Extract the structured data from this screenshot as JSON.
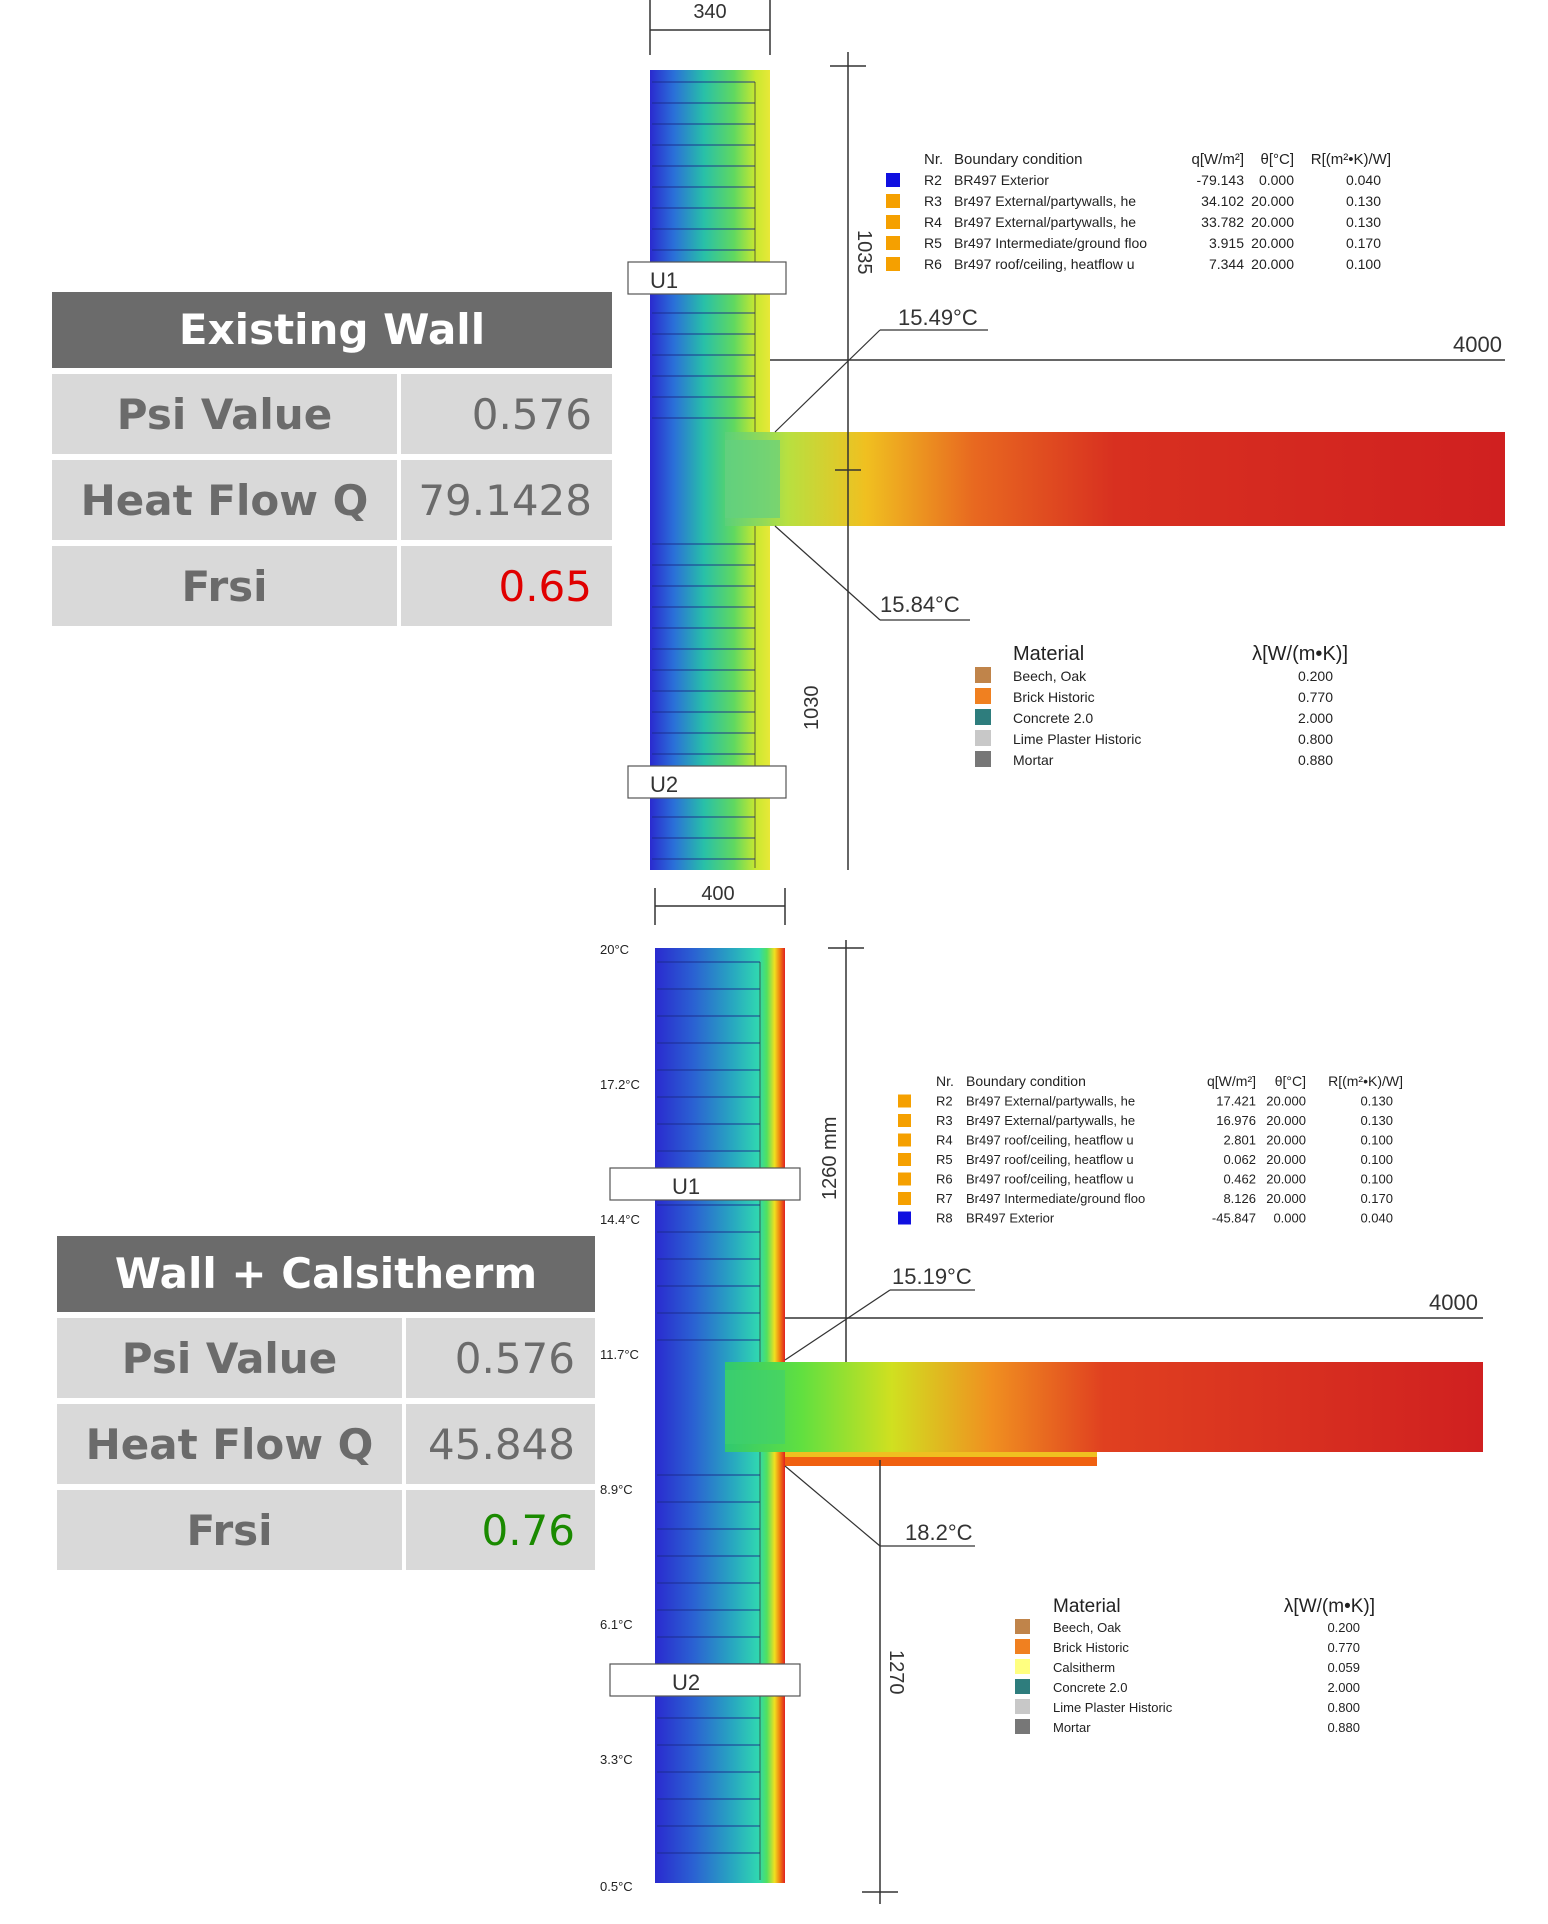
{
  "colors": {
    "card_header": "#6b6b6b",
    "card_cell": "#d9d9d9",
    "red": "#e00000",
    "green": "#1a8a00",
    "hot": "#d02020",
    "cold": "#2a2acf"
  },
  "card1": {
    "title": "Existing Wall",
    "rows": [
      {
        "label": "Psi Value",
        "value": "0.576",
        "color": "#6b6b6b"
      },
      {
        "label": "Heat Flow Q",
        "value": "79.1428",
        "color": "#6b6b6b"
      },
      {
        "label": "Frsi",
        "value": "0.65",
        "color": "#e00000"
      }
    ]
  },
  "card2": {
    "title": "Wall + Calsitherm",
    "rows": [
      {
        "label": "Psi Value",
        "value": "0.576",
        "color": "#6b6b6b"
      },
      {
        "label": "Heat Flow Q",
        "value": "45.848",
        "color": "#6b6b6b"
      },
      {
        "label": "Frsi",
        "value": "0.76",
        "color": "#1a8a00"
      }
    ]
  },
  "top": {
    "dim_width": "340",
    "dim_upper": "1035",
    "dim_lower": "1030",
    "dim_floor": "4000",
    "u1": "U1",
    "u2": "U2",
    "temp_upper": "15.49°C",
    "temp_lower": "15.84°C",
    "bc_headers": [
      "Nr.",
      "Boundary condition",
      "q[W/m²]",
      "θ[°C]",
      "R[(m²•K)/W]"
    ],
    "bc_rows": [
      {
        "nr": "R2",
        "name": "BR497 Exterior",
        "q": "-79.143",
        "t": "0.000",
        "r": "0.040",
        "color": "#1010e0"
      },
      {
        "nr": "R3",
        "name": "Br497 External/partywalls, he",
        "q": "34.102",
        "t": "20.000",
        "r": "0.130",
        "color": "#f5a000"
      },
      {
        "nr": "R4",
        "name": "Br497 External/partywalls, he",
        "q": "33.782",
        "t": "20.000",
        "r": "0.130",
        "color": "#f5a000"
      },
      {
        "nr": "R5",
        "name": "Br497 Intermediate/ground floo",
        "q": "3.915",
        "t": "20.000",
        "r": "0.170",
        "color": "#f5a000"
      },
      {
        "nr": "R6",
        "name": "Br497 roof/ceiling, heatflow u",
        "q": "7.344",
        "t": "20.000",
        "r": "0.100",
        "color": "#f5a000"
      }
    ],
    "mat_headers": [
      "Material",
      "λ[W/(m•K)]"
    ],
    "materials": [
      {
        "name": "Beech, Oak",
        "lambda": "0.200",
        "color": "#c0844a"
      },
      {
        "name": "Brick Historic",
        "lambda": "0.770",
        "color": "#f08020"
      },
      {
        "name": "Concrete 2.0",
        "lambda": "2.000",
        "color": "#2e7d7d"
      },
      {
        "name": "Lime Plaster Historic",
        "lambda": "0.800",
        "color": "#c8c8c8"
      },
      {
        "name": "Mortar",
        "lambda": "0.880",
        "color": "#777777"
      }
    ]
  },
  "bottom": {
    "dim_width": "400",
    "dim_upper": "1260 mm",
    "dim_lower": "1270",
    "dim_floor": "4000",
    "u1": "U1",
    "u2": "U2",
    "temp_upper": "15.19°C",
    "temp_lower": "18.2°C",
    "scale": [
      "20°C",
      "17.2°C",
      "14.4°C",
      "11.7°C",
      "8.9°C",
      "6.1°C",
      "3.3°C",
      "0.5°C"
    ],
    "bc_headers": [
      "Nr.",
      "Boundary condition",
      "q[W/m²]",
      "θ[°C]",
      "R[(m²•K)/W]"
    ],
    "bc_rows": [
      {
        "nr": "R2",
        "name": "Br497 External/partywalls, he",
        "q": "17.421",
        "t": "20.000",
        "r": "0.130",
        "color": "#f5a000"
      },
      {
        "nr": "R3",
        "name": "Br497 External/partywalls, he",
        "q": "16.976",
        "t": "20.000",
        "r": "0.130",
        "color": "#f5a000"
      },
      {
        "nr": "R4",
        "name": "Br497 roof/ceiling, heatflow u",
        "q": "2.801",
        "t": "20.000",
        "r": "0.100",
        "color": "#f5a000"
      },
      {
        "nr": "R5",
        "name": "Br497 roof/ceiling, heatflow u",
        "q": "0.062",
        "t": "20.000",
        "r": "0.100",
        "color": "#f5a000"
      },
      {
        "nr": "R6",
        "name": "Br497 roof/ceiling, heatflow u",
        "q": "0.462",
        "t": "20.000",
        "r": "0.100",
        "color": "#f5a000"
      },
      {
        "nr": "R7",
        "name": "Br497 Intermediate/ground floo",
        "q": "8.126",
        "t": "20.000",
        "r": "0.170",
        "color": "#f5a000"
      },
      {
        "nr": "R8",
        "name": "BR497 Exterior",
        "q": "-45.847",
        "t": "0.000",
        "r": "0.040",
        "color": "#1010e0"
      }
    ],
    "mat_headers": [
      "Material",
      "λ[W/(m•K)]"
    ],
    "materials": [
      {
        "name": "Beech, Oak",
        "lambda": "0.200",
        "color": "#c0844a"
      },
      {
        "name": "Brick Historic",
        "lambda": "0.770",
        "color": "#f08020"
      },
      {
        "name": "Calsitherm",
        "lambda": "0.059",
        "color": "#ffff80"
      },
      {
        "name": "Concrete 2.0",
        "lambda": "2.000",
        "color": "#2e7d7d"
      },
      {
        "name": "Lime Plaster Historic",
        "lambda": "0.800",
        "color": "#c8c8c8"
      },
      {
        "name": "Mortar",
        "lambda": "0.880",
        "color": "#777777"
      }
    ]
  }
}
